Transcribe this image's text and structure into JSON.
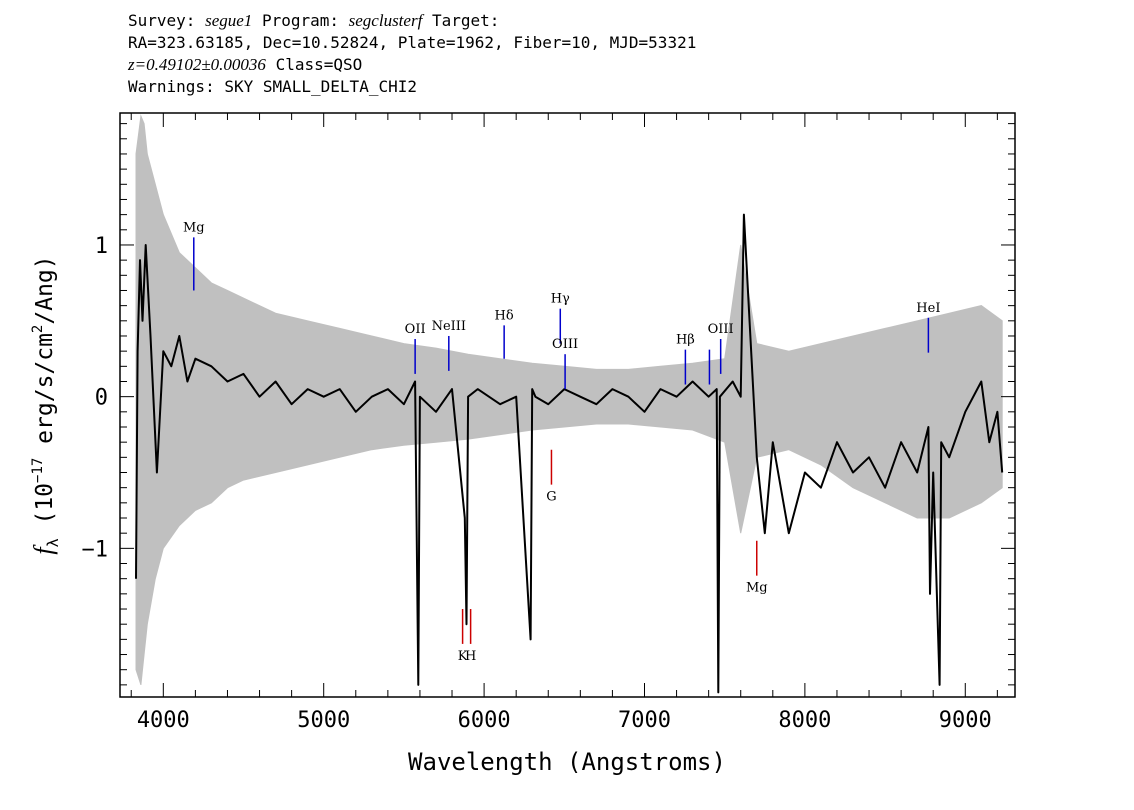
{
  "header": {
    "survey_label": "Survey:",
    "survey": "segue1",
    "program_label": "Program:",
    "program": "segclusterf",
    "target_label": "Target:",
    "coords": "RA=323.63185, Dec=10.52824, Plate=1962, Fiber=10, MJD=53321",
    "redshift": "z=0.49102±0.00036",
    "class": "Class=QSO",
    "warnings": "Warnings: SKY SMALL_DELTA_CHI2"
  },
  "chart_data": {
    "type": "line",
    "xlabel": "Wavelength (Angstroms)",
    "ylabel": "f_λ (10^-17 erg/s/cm^2/Ang)",
    "xlim": [
      3730,
      9310
    ],
    "ylim": [
      -1.98,
      1.87
    ],
    "xticks": [
      4000,
      5000,
      6000,
      7000,
      8000,
      9000
    ],
    "yticks": [
      -1,
      0,
      1
    ],
    "colors": {
      "flux": "#000000",
      "error": "#c0c0c0",
      "emission": "#0000cc",
      "absorption": "#cc0000"
    },
    "series": [
      {
        "kind": "error-envelope",
        "x": [
          3830,
          3860,
          3880,
          3900,
          3950,
          4000,
          4100,
          4200,
          4300,
          4400,
          4500,
          4700,
          4900,
          5100,
          5300,
          5500,
          5700,
          5900,
          6100,
          6300,
          6500,
          6700,
          6900,
          7100,
          7300,
          7500,
          7600,
          7700,
          7900,
          8100,
          8300,
          8500,
          8700,
          8900,
          9100,
          9230
        ],
        "upper": [
          1.6,
          1.85,
          1.8,
          1.6,
          1.4,
          1.2,
          0.95,
          0.85,
          0.75,
          0.7,
          0.65,
          0.55,
          0.5,
          0.45,
          0.4,
          0.35,
          0.32,
          0.28,
          0.25,
          0.22,
          0.2,
          0.18,
          0.18,
          0.2,
          0.22,
          0.25,
          1.0,
          0.35,
          0.3,
          0.35,
          0.4,
          0.45,
          0.5,
          0.55,
          0.6,
          0.5
        ],
        "lower": [
          -1.8,
          -1.9,
          -1.7,
          -1.5,
          -1.2,
          -1.0,
          -0.85,
          -0.75,
          -0.7,
          -0.6,
          -0.55,
          -0.5,
          -0.45,
          -0.4,
          -0.35,
          -0.32,
          -0.3,
          -0.28,
          -0.25,
          -0.22,
          -0.2,
          -0.18,
          -0.18,
          -0.2,
          -0.22,
          -0.3,
          -0.9,
          -0.4,
          -0.35,
          -0.45,
          -0.6,
          -0.7,
          -0.8,
          -0.8,
          -0.7,
          -0.6
        ]
      },
      {
        "kind": "flux",
        "x": [
          3830,
          3840,
          3855,
          3870,
          3890,
          3920,
          3960,
          4000,
          4050,
          4100,
          4150,
          4200,
          4300,
          4400,
          4500,
          4600,
          4700,
          4800,
          4900,
          5000,
          5100,
          5200,
          5300,
          5400,
          5500,
          5570,
          5590,
          5600,
          5700,
          5800,
          5880,
          5890,
          5900,
          5960,
          6100,
          6200,
          6290,
          6300,
          6320,
          6400,
          6500,
          6600,
          6700,
          6800,
          6900,
          7000,
          7100,
          7200,
          7300,
          7400,
          7450,
          7460,
          7470,
          7550,
          7600,
          7620,
          7700,
          7750,
          7800,
          7900,
          8000,
          8100,
          8200,
          8300,
          8400,
          8500,
          8600,
          8700,
          8770,
          8780,
          8800,
          8840,
          8850,
          8900,
          9000,
          9100,
          9150,
          9200,
          9230
        ],
        "y": [
          -1.2,
          0.3,
          0.9,
          0.5,
          1.0,
          0.4,
          -0.5,
          0.3,
          0.2,
          0.4,
          0.1,
          0.25,
          0.2,
          0.1,
          0.15,
          0.0,
          0.1,
          -0.05,
          0.05,
          0.0,
          0.05,
          -0.1,
          0.0,
          0.05,
          -0.05,
          0.1,
          -1.9,
          0.0,
          -0.1,
          0.05,
          -0.8,
          -1.5,
          0.0,
          0.05,
          -0.05,
          0.0,
          -1.6,
          0.05,
          0.0,
          -0.05,
          0.05,
          0.0,
          -0.05,
          0.05,
          0.0,
          -0.1,
          0.05,
          0.0,
          0.1,
          0.0,
          0.05,
          -1.95,
          0.0,
          0.1,
          0.0,
          1.2,
          -0.4,
          -0.9,
          -0.3,
          -0.9,
          -0.5,
          -0.6,
          -0.3,
          -0.5,
          -0.4,
          -0.6,
          -0.3,
          -0.5,
          -0.2,
          -1.3,
          -0.5,
          -1.9,
          -0.3,
          -0.4,
          -0.1,
          0.1,
          -0.3,
          -0.1,
          -0.5
        ]
      }
    ],
    "emission_lines": [
      {
        "label": "Mg",
        "x": 4190,
        "y_top": 1.05,
        "y_bottom": 0.7
      },
      {
        "label": "OII",
        "x": 5570,
        "y_top": 0.38,
        "y_bottom": 0.15
      },
      {
        "label": "NeIII",
        "x": 5780,
        "y_top": 0.4,
        "y_bottom": 0.17
      },
      {
        "label": "Hδ",
        "x": 6125,
        "y_top": 0.47,
        "y_bottom": 0.25
      },
      {
        "label": "Hγ",
        "x": 6475,
        "y_top": 0.58,
        "y_bottom": 0.35
      },
      {
        "label": "OIII",
        "x": 6505,
        "y_top": 0.28,
        "y_bottom": 0.05
      },
      {
        "label": "Hβ",
        "x": 7255,
        "y_top": 0.31,
        "y_bottom": 0.08
      },
      {
        "label": "",
        "x": 7405,
        "y_top": 0.31,
        "y_bottom": 0.08
      },
      {
        "label": "OIII",
        "x": 7475,
        "y_top": 0.38,
        "y_bottom": 0.15
      },
      {
        "label": "HeI",
        "x": 8770,
        "y_top": 0.52,
        "y_bottom": 0.29
      }
    ],
    "absorption_lines": [
      {
        "label": "K",
        "x": 5866,
        "y_top": -1.4,
        "y_bottom": -1.63
      },
      {
        "label": "H",
        "x": 5916,
        "y_top": -1.4,
        "y_bottom": -1.63
      },
      {
        "label": "G",
        "x": 6420,
        "y_top": -0.35,
        "y_bottom": -0.58
      },
      {
        "label": "Mg",
        "x": 7700,
        "y_top": -0.95,
        "y_bottom": -1.18
      }
    ]
  }
}
